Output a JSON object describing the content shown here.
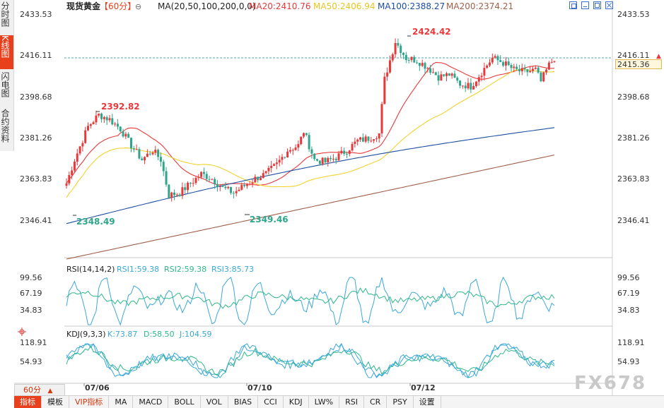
{
  "sidebar": {
    "tabs": [
      {
        "label": "分时图",
        "active": false
      },
      {
        "label": "K线图",
        "active": true
      },
      {
        "label": "闪电图",
        "active": false
      },
      {
        "label": "合约资料",
        "active": false
      }
    ]
  },
  "header": {
    "symbol": "现货黄金",
    "period": "【60分】",
    "settings_glyph": "⊖",
    "ma_label": "MA(20,50,100,200,0,0)",
    "ma20": "MA20:2410.76",
    "ma50": "MA50:2406.94",
    "ma100": "MA100:2388.27",
    "ma200": "MA200:2374.21"
  },
  "price_axis": {
    "labels": [
      "2433.53",
      "2416.11",
      "2398.68",
      "2381.26",
      "2363.83",
      "2346.41"
    ],
    "current_price": "2415.36",
    "up_arrow": "▲"
  },
  "annotations": {
    "high_1": "2392.82",
    "low_1": "2348.49",
    "low_2": "2349.46",
    "high_2": "2424.42"
  },
  "rsi": {
    "title": "RSI(14,14,2)",
    "rsi1": "RSI1:59.38",
    "rsi2": "RSI2:59.38",
    "rsi3": "RSI3:85.73",
    "levels": [
      "99.56",
      "67.19",
      "34.83"
    ]
  },
  "kdj": {
    "title": "KDJ(9,3,3)",
    "k": "K:73.87",
    "d": "D:58.50",
    "j": "J:104.59",
    "levels": [
      "118.91",
      "54.93"
    ]
  },
  "dates": [
    "07/06",
    "07/10",
    "07/12"
  ],
  "period_selector": {
    "label": "60分",
    "arrow": "▲"
  },
  "toolbar": {
    "items": [
      "指标",
      "模板",
      "VIP指标",
      "MA",
      "MACD",
      "BOLL",
      "VOL",
      "BIAS",
      "CCI",
      "KDJ",
      "LW%",
      "RSI",
      "CR",
      "PSY",
      "设置"
    ]
  },
  "watermark": "FX678",
  "colors": {
    "up": "#e8393a",
    "down": "#2fa68c",
    "ma20": "#e8393a",
    "ma50": "#f2d230",
    "ma100": "#1e4fa0",
    "ma200": "#a0614a",
    "accent": "#e8401c",
    "rsi1": "#3aa8d8",
    "rsi2": "#2fb889",
    "kdj_k": "#3aa8d8",
    "kdj_d": "#2fb889"
  }
}
